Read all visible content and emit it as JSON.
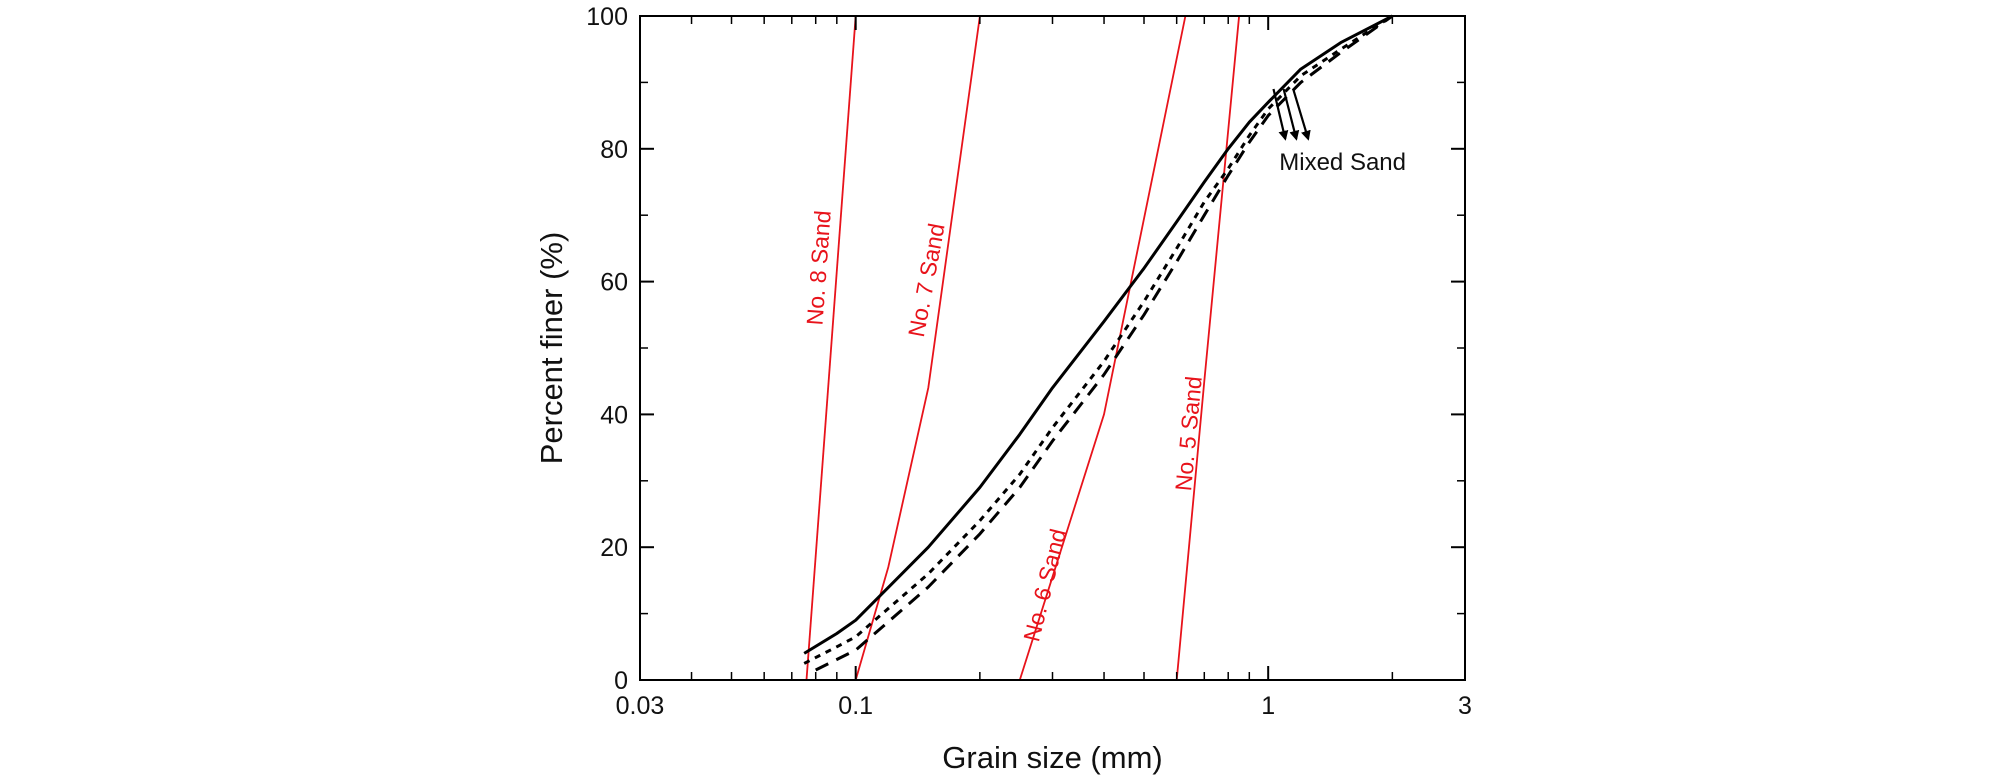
{
  "chart_data": {
    "type": "line",
    "xlabel": "Grain size (mm)",
    "ylabel": "Percent finer (%)",
    "x_scale": "log",
    "xlim": [
      0.03,
      3
    ],
    "ylim": [
      0,
      100
    ],
    "x_ticks": [
      {
        "value": 0.03,
        "label": "0.03"
      },
      {
        "value": 0.1,
        "label": "0.1"
      },
      {
        "value": 1,
        "label": "1"
      },
      {
        "value": 3,
        "label": "3"
      }
    ],
    "y_ticks": [
      {
        "value": 0,
        "label": "0"
      },
      {
        "value": 20,
        "label": "20"
      },
      {
        "value": 40,
        "label": "40"
      },
      {
        "value": 60,
        "label": "60"
      },
      {
        "value": 80,
        "label": "80"
      },
      {
        "value": 100,
        "label": "100"
      }
    ],
    "grid": false,
    "colors": {
      "sand": "#e8131b",
      "mixed": "#000000"
    },
    "series": [
      {
        "name": "No. 8 Sand",
        "group": "sand",
        "label_at": {
          "x": 0.085,
          "y": 62
        },
        "x": [
          0.076,
          0.1
        ],
        "y": [
          0,
          100
        ]
      },
      {
        "name": "No. 7 Sand",
        "group": "sand",
        "label_at": {
          "x": 0.155,
          "y": 60
        },
        "x": [
          0.1,
          0.12,
          0.15,
          0.2
        ],
        "y": [
          0,
          17,
          44,
          100
        ]
      },
      {
        "name": "No. 6 Sand",
        "group": "sand",
        "label_at": {
          "x": 0.3,
          "y": 14
        },
        "x": [
          0.25,
          0.4,
          0.63
        ],
        "y": [
          0,
          40,
          100
        ]
      },
      {
        "name": "No. 5 Sand",
        "group": "sand",
        "label_at": {
          "x": 0.67,
          "y": 37
        },
        "x": [
          0.6,
          0.7,
          0.85
        ],
        "y": [
          0,
          45,
          100
        ]
      },
      {
        "group": "mixed",
        "style": "solid",
        "x": [
          0.075,
          0.09,
          0.1,
          0.15,
          0.2,
          0.25,
          0.3,
          0.4,
          0.5,
          0.6,
          0.7,
          0.8,
          0.9,
          1.0,
          1.2,
          1.5,
          2.0
        ],
        "y": [
          4,
          7,
          9,
          20,
          29,
          37,
          44,
          54,
          62,
          69,
          75,
          80,
          84,
          87,
          92,
          96,
          100
        ]
      },
      {
        "group": "mixed",
        "style": "dotted",
        "x": [
          0.075,
          0.09,
          0.1,
          0.15,
          0.2,
          0.25,
          0.3,
          0.4,
          0.5,
          0.6,
          0.7,
          0.8,
          0.9,
          1.0,
          1.2,
          1.5,
          2.0
        ],
        "y": [
          2.5,
          5,
          6.5,
          16,
          24,
          31,
          38,
          48,
          57,
          65,
          72,
          77,
          82,
          86,
          91,
          95,
          100
        ]
      },
      {
        "group": "mixed",
        "style": "dashed",
        "x": [
          0.08,
          0.1,
          0.15,
          0.2,
          0.25,
          0.3,
          0.4,
          0.5,
          0.6,
          0.7,
          0.8,
          0.9,
          1.0,
          1.2,
          1.5,
          2.0
        ],
        "y": [
          1.5,
          4.5,
          14,
          22,
          29,
          36,
          46,
          55,
          63,
          70,
          76,
          81,
          85,
          90,
          94.5,
          100
        ]
      }
    ],
    "annotations": [
      {
        "text": "Mixed Sand",
        "at": {
          "x": 1.1,
          "y": 78
        },
        "arrows": [
          {
            "from": {
              "x": 1.03,
              "y": 89
            },
            "to": {
              "x": 1.1,
              "y": 81.5
            }
          },
          {
            "from": {
              "x": 1.09,
              "y": 89
            },
            "to": {
              "x": 1.17,
              "y": 81.5
            }
          },
          {
            "from": {
              "x": 1.15,
              "y": 89
            },
            "to": {
              "x": 1.25,
              "y": 81.5
            }
          }
        ]
      }
    ]
  }
}
